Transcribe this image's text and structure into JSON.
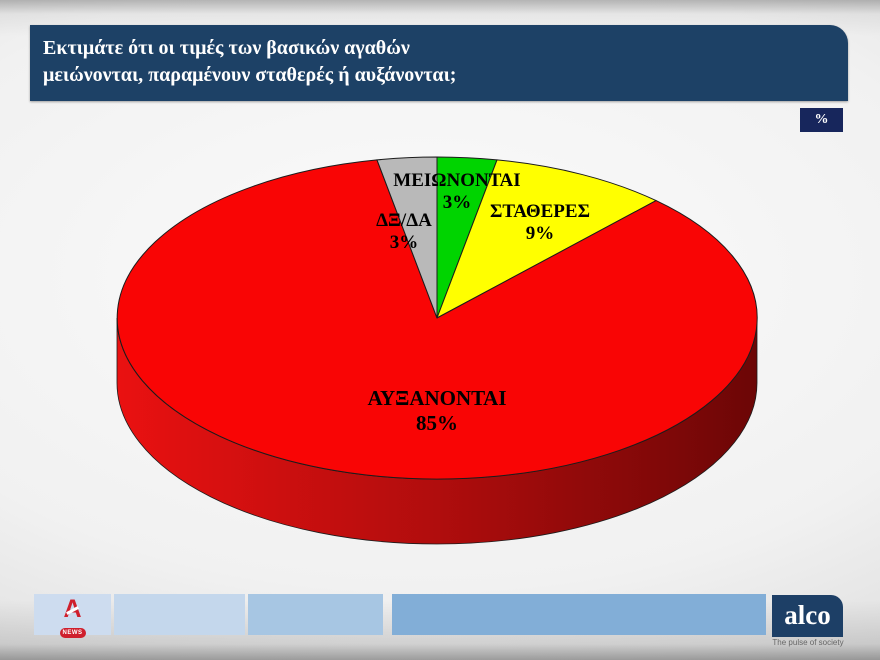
{
  "header": {
    "question_line1": "Εκτιμάτε ότι οι τιμές των βασικών αγαθών",
    "question_line2": "μειώνονται, παραμένουν σταθερές ή αυξάνονται;",
    "unit_badge": "%"
  },
  "chart_data": {
    "type": "pie",
    "style": "3d",
    "unit": "%",
    "start_angle_deg": 0,
    "direction": "clockwise",
    "slices": [
      {
        "label": "ΜΕΙΩΝΟΝΤΑΙ",
        "value": 3,
        "pct_label": "3%",
        "color": "#00d400"
      },
      {
        "label": "ΣΤΑΘΕΡΕΣ",
        "value": 9,
        "pct_label": "9%",
        "color": "#ffff00"
      },
      {
        "label": "ΑΥΞΑΝΟΝΤΑΙ",
        "value": 85,
        "pct_label": "85%",
        "color": "#f90505"
      },
      {
        "label": "ΔΞ/ΔΑ",
        "value": 3,
        "pct_label": "3%",
        "color": "#b9b9b9"
      }
    ],
    "rim_gradient": [
      "#ea1111",
      "#b00d0d",
      "#6c0606"
    ],
    "outline_color": "#1c1c1c"
  },
  "footer": {
    "alpha_news": {
      "letter": "A",
      "badge": "NEWS"
    },
    "alco": {
      "name": "alco",
      "tagline": "The pulse of society"
    }
  },
  "colors": {
    "title_bar": "#1d4166",
    "badge_bg": "#17265c",
    "alpha_red": "#cf1f2c",
    "alco_navy": "#1d3f66",
    "footer_boxes": [
      "#cddcef",
      "#c4d7ec",
      "#a7c6e3",
      "#82aed7"
    ]
  }
}
